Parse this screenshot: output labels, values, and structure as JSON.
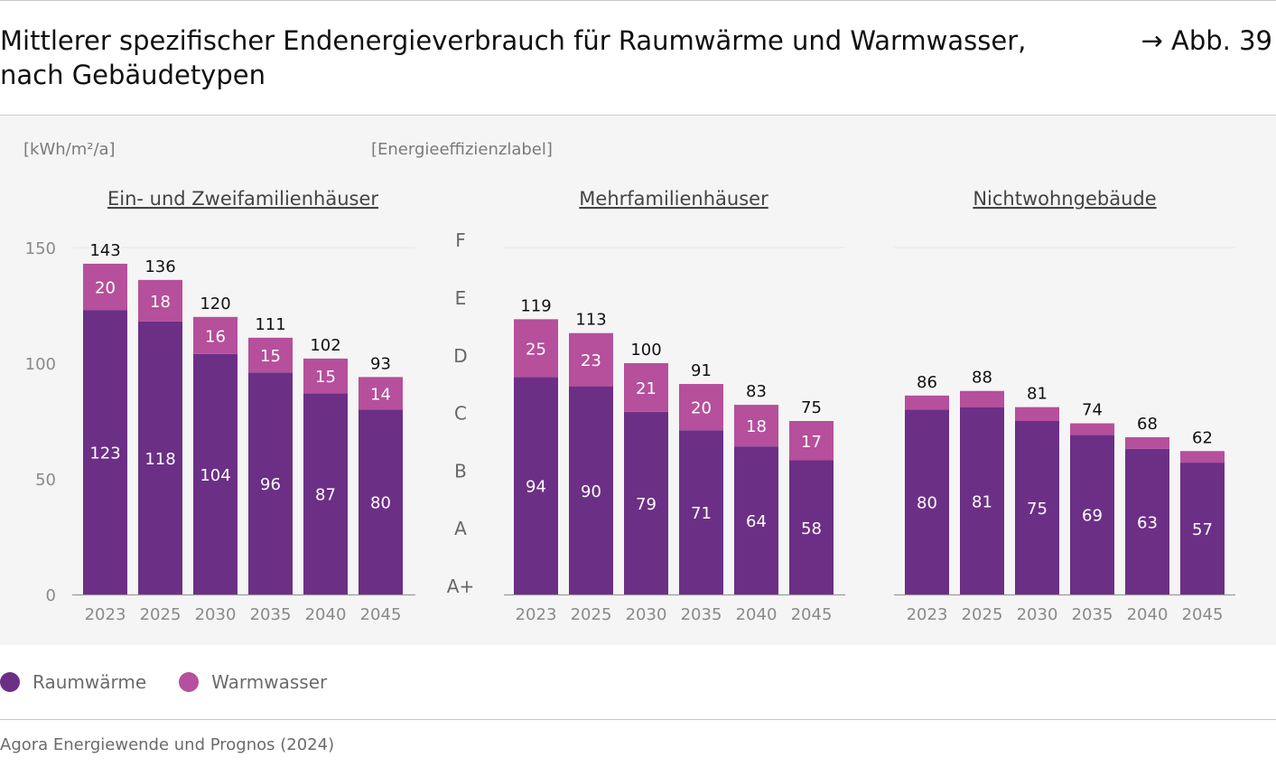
{
  "figure": {
    "title": "Mittlerer spezifischer Endenergieverbrauch für Raumwärme und Warmwasser, nach Gebäudetypen",
    "title_line1": "Mittlerer spezifischer Endenergieverbrauch für Raumwärme und Warmwasser,",
    "title_line2": "nach Gebäudetypen",
    "reference": "→ Abb. 39",
    "unit_label": "[kWh/m²/a]",
    "label_axis_title": "[Energieeffizienzlabel]",
    "source": "Agora Energiewende und Prognos (2024)"
  },
  "legend": {
    "raumwaerme": "Raumwärme",
    "warmwasser": "Warmwasser"
  },
  "colors": {
    "raumwaerme": "#6c2f86",
    "warmwasser": "#b64f9c",
    "panel_bg": "#f5f5f5"
  },
  "chart_data": [
    {
      "type": "bar",
      "stacked": true,
      "title": "Ein- und Zweifamilienhäuser",
      "categories": [
        "2023",
        "2025",
        "2030",
        "2035",
        "2040",
        "2045"
      ],
      "series": [
        {
          "name": "Raumwärme",
          "values": [
            123,
            118,
            104,
            96,
            87,
            80
          ]
        },
        {
          "name": "Warmwasser",
          "values": [
            20,
            18,
            16,
            15,
            15,
            14
          ]
        }
      ],
      "totals": [
        143,
        136,
        120,
        111,
        102,
        93
      ],
      "ylabel": "[kWh/m²/a]",
      "ylim": [
        0,
        150
      ],
      "yticks": [
        0,
        50,
        100,
        150
      ]
    },
    {
      "type": "bar",
      "stacked": true,
      "title": "Mehrfamilienhäuser",
      "categories": [
        "2023",
        "2025",
        "2030",
        "2035",
        "2040",
        "2045"
      ],
      "series": [
        {
          "name": "Raumwärme",
          "values": [
            94,
            90,
            79,
            71,
            64,
            58
          ]
        },
        {
          "name": "Warmwasser",
          "values": [
            25,
            23,
            21,
            20,
            18,
            17
          ]
        }
      ],
      "totals": [
        119,
        113,
        100,
        91,
        83,
        75
      ],
      "ylim": [
        0,
        150
      ],
      "efficiency_labels": [
        "A+",
        "A",
        "B",
        "C",
        "D",
        "E",
        "F"
      ]
    },
    {
      "type": "bar",
      "stacked": true,
      "title": "Nichtwohngebäude",
      "categories": [
        "2023",
        "2025",
        "2030",
        "2035",
        "2040",
        "2045"
      ],
      "series": [
        {
          "name": "Raumwärme",
          "values": [
            80,
            81,
            75,
            69,
            63,
            57
          ]
        },
        {
          "name": "Warmwasser",
          "values": [
            6,
            7,
            6,
            5,
            5,
            5
          ]
        }
      ],
      "totals": [
        86,
        88,
        81,
        74,
        68,
        62
      ],
      "ylim": [
        0,
        150
      ],
      "warmwasser_labels_shown": false
    }
  ]
}
